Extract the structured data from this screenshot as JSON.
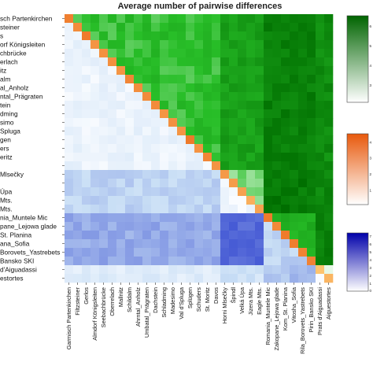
{
  "chart_data": {
    "type": "heatmap",
    "title": "Average number of pairwise differences",
    "row_labels_visible": [
      "sch Partenkirchen",
      "steiner",
      "s",
      "orf Königsleiten",
      "chbrücke",
      "erlach",
      "itz",
      "alm",
      "al_Anholz",
      "ntal_Prägraten",
      "tein",
      "dming",
      "simo",
      "Spluga",
      "gen",
      "ers",
      "eritz",
      "",
      "Mlsečky",
      "",
      "Úpa",
      "Mts.",
      "Mts.",
      "nia_Muntele Mic",
      "pane_Lejowa glade",
      "St. Planina",
      "ana_Sofia",
      "Borovets_Yastrebets",
      "Bansko SKI",
      "d'Aiguadassi",
      "estortes"
    ],
    "column_labels": [
      "Garmisch Partenkirchen",
      "Filtzsteiner",
      "Gerlos",
      "Almdorf Königsleiten",
      "Seebachbrücke",
      "Oberrelach",
      "Mallnitz",
      "Schildalm",
      "Ahrntal_Anholz",
      "Umbatal_Prägraten",
      "Dachstein",
      "Schladming",
      "Madesimo",
      "Val d'Spluga",
      "Splügen",
      "Schuders",
      "St. Moritz",
      "Davos",
      "Horni Mlsečky",
      "Špindl",
      "Velká Úpa",
      "Jizera Mts.",
      "Eagle Mts.",
      "Romania_Muntele Mic",
      "Zakopane_Lejowa glade",
      "Kom_St. Planina",
      "Vitosha_Sofia",
      "Rila_Borovets_Yastrebets",
      "Pirin_Bansko SKI",
      "Prats d'Aiguadassi",
      "Aiguestortes"
    ],
    "diagonal_scale": {
      "color_high": "#e8590c",
      "ticks": [
        "4",
        "3",
        "2",
        "1"
      ]
    },
    "upper_scale": {
      "color_high": "#006400",
      "ticks": [
        "6",
        "5",
        "4",
        "3"
      ]
    },
    "lower_scale": {
      "color_high": "#0000aa",
      "ticks": [
        "7",
        "6",
        "5",
        "4",
        "3",
        "2",
        "1"
      ]
    },
    "lower_label": "0",
    "groups": [
      {
        "range": [
          0,
          17
        ],
        "diag": 2.8,
        "within_upper": 4.4,
        "within_lower": 1.5
      },
      {
        "range": [
          18,
          22
        ],
        "diag": 2.2,
        "within_upper": 3.8,
        "within_lower": 1.2
      },
      {
        "range": [
          23,
          28
        ],
        "diag": 3.0,
        "within_upper": 4.8,
        "within_lower": 3.0
      },
      {
        "range": [
          29,
          30
        ],
        "diag": 1.5,
        "within_upper": 3.2,
        "within_lower": 1.0
      }
    ],
    "between_group_upper": [
      [
        4.4,
        5.4,
        6.4,
        6.0
      ],
      [
        5.4,
        3.8,
        6.6,
        6.2
      ],
      [
        6.4,
        6.6,
        4.8,
        6.4
      ],
      [
        6.0,
        6.2,
        6.4,
        3.2
      ]
    ],
    "between_group_lower": [
      [
        1.5,
        3.0,
        4.0,
        2.0
      ],
      [
        3.0,
        1.2,
        5.5,
        2.5
      ],
      [
        4.0,
        5.5,
        3.0,
        3.5
      ],
      [
        2.0,
        2.5,
        3.5,
        1.0
      ]
    ]
  }
}
